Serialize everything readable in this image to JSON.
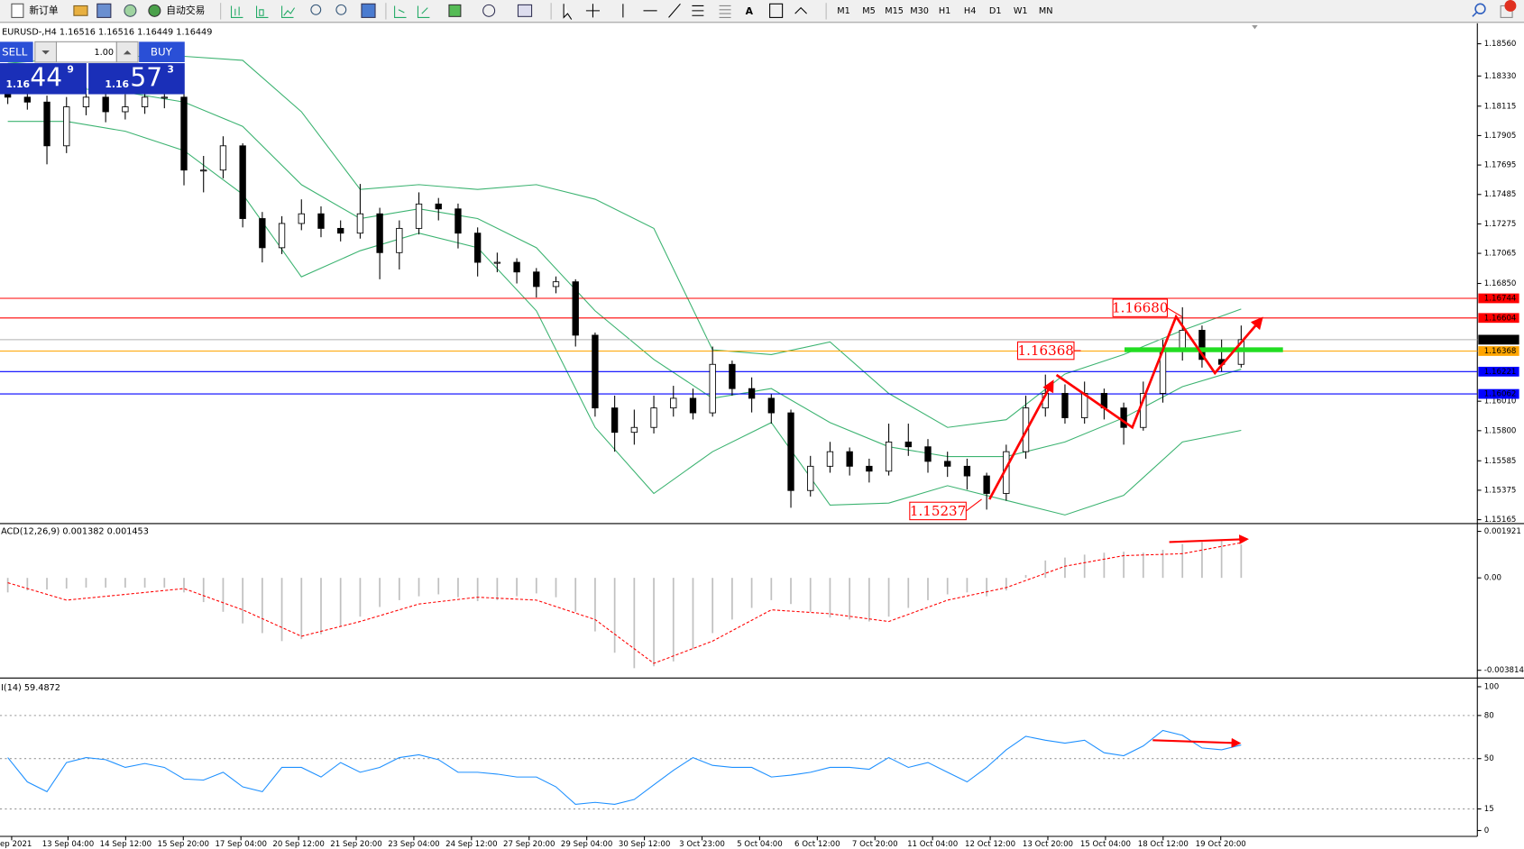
{
  "toolbar": {
    "new_order": "新订单",
    "auto_trading": "自动交易",
    "timeframes": [
      "M1",
      "M5",
      "M15",
      "M30",
      "H1",
      "H4",
      "D1",
      "W1",
      "MN"
    ]
  },
  "trade_panel": {
    "sell": "SELL",
    "buy": "BUY",
    "lot": "1.00",
    "sell_price": {
      "big": "1.16",
      "pips": "44",
      "point": "9"
    },
    "buy_price": {
      "big": "1.16",
      "pips": "57",
      "point": "3"
    }
  },
  "chart_data": [
    {
      "type": "candlestick",
      "title": "EURUSD-,H4  1.16516 1.16516 1.16449 1.16449",
      "open": [
        1.182,
        1.18179,
        1.18144,
        1.17832,
        1.1811,
        1.18179,
        1.18075,
        1.1811,
        1.18179,
        1.18179,
        1.17659,
        1.17659,
        1.17832,
        1.17313,
        1.17105,
        1.17278,
        1.17347,
        1.17243,
        1.17209,
        1.17347,
        1.1707,
        1.17243,
        1.17417,
        1.17382,
        1.17209,
        1.17001,
        1.17001,
        1.16932,
        1.16828,
        1.16862,
        1.16481,
        1.15962,
        1.15788,
        1.15823,
        1.15962,
        1.16031,
        1.15927,
        1.16273,
        1.161,
        1.16031,
        1.15927,
        1.15373,
        1.15546,
        1.1565,
        1.15546,
        1.15511,
        1.15719,
        1.15685,
        1.15581,
        1.15546,
        1.15477,
        1.15352,
        1.1565,
        1.15962,
        1.16066,
        1.15892,
        1.16066,
        1.15962,
        1.15823,
        1.16066,
        1.16377,
        1.16516,
        1.16308,
        1.16273
      ],
      "high": [
        1.1825,
        1.1823,
        1.1819,
        1.1818,
        1.1825,
        1.1823,
        1.182,
        1.1826,
        1.1824,
        1.182,
        1.1776,
        1.179,
        1.1785,
        1.1736,
        1.1733,
        1.1745,
        1.174,
        1.173,
        1.1756,
        1.1739,
        1.173,
        1.175,
        1.1746,
        1.1742,
        1.1725,
        1.1707,
        1.1703,
        1.1696,
        1.169,
        1.1688,
        1.165,
        1.1605,
        1.1595,
        1.1605,
        1.1612,
        1.161,
        1.164,
        1.163,
        1.1618,
        1.1606,
        1.1595,
        1.1562,
        1.1572,
        1.1568,
        1.156,
        1.1585,
        1.1585,
        1.1574,
        1.1565,
        1.156,
        1.155,
        1.157,
        1.1605,
        1.162,
        1.1613,
        1.1615,
        1.161,
        1.16,
        1.1615,
        1.1645,
        1.1668,
        1.1655,
        1.1645,
        1.1655
      ],
      "low": [
        1.1813,
        1.1809,
        1.177,
        1.1778,
        1.1805,
        1.18,
        1.1802,
        1.1806,
        1.181,
        1.1755,
        1.175,
        1.176,
        1.1725,
        1.17,
        1.1706,
        1.1723,
        1.1718,
        1.1715,
        1.1717,
        1.1688,
        1.1695,
        1.172,
        1.173,
        1.171,
        1.169,
        1.1693,
        1.1685,
        1.1675,
        1.1678,
        1.164,
        1.159,
        1.1565,
        1.157,
        1.1578,
        1.159,
        1.1588,
        1.159,
        1.1605,
        1.1593,
        1.1585,
        1.1525,
        1.1533,
        1.155,
        1.1548,
        1.1543,
        1.1548,
        1.1562,
        1.155,
        1.1547,
        1.1538,
        1.15237,
        1.153,
        1.156,
        1.159,
        1.1585,
        1.1585,
        1.1588,
        1.157,
        1.158,
        1.16,
        1.163,
        1.1625,
        1.16221,
        1.1625
      ],
      "close": [
        1.18179,
        1.18144,
        1.17832,
        1.1811,
        1.18179,
        1.18075,
        1.1811,
        1.18179,
        1.18179,
        1.17659,
        1.17659,
        1.17832,
        1.17313,
        1.17105,
        1.17278,
        1.17347,
        1.17243,
        1.17209,
        1.17347,
        1.1707,
        1.17243,
        1.17417,
        1.17382,
        1.17209,
        1.17001,
        1.17001,
        1.16932,
        1.16828,
        1.16862,
        1.16481,
        1.15962,
        1.15788,
        1.15823,
        1.15962,
        1.16031,
        1.15927,
        1.16273,
        1.161,
        1.16031,
        1.15927,
        1.15373,
        1.15546,
        1.1565,
        1.15546,
        1.15511,
        1.15719,
        1.15685,
        1.15581,
        1.15546,
        1.15477,
        1.15352,
        1.1565,
        1.15962,
        1.16066,
        1.15892,
        1.16066,
        1.15962,
        1.15823,
        1.16066,
        1.16377,
        1.16516,
        1.16308,
        1.16273,
        1.16449
      ],
      "ylim": [
        1.15144,
        1.18699
      ],
      "yticks": [
        {
          "value": 1.1856,
          "label": "1.18560"
        },
        {
          "value": 1.1833,
          "label": "1.18330"
        },
        1.18115,
        1.17905,
        1.17695,
        1.17485,
        1.17275,
        1.17065,
        {
          "value": 1.1685,
          "label": "1.16850"
        },
        {
          "value": 1.1601,
          "label": "1.16010"
        },
        {
          "value": 1.158,
          "label": "1.15800"
        },
        1.15585,
        1.15375,
        1.15165
      ],
      "x_labels": [
        "ep 2021",
        "13 Sep 04:00",
        "14 Sep 12:00",
        "15 Sep 20:00",
        "17 Sep 04:00",
        "20 Sep 12:00",
        "21 Sep 20:00",
        "23 Sep 04:00",
        "24 Sep 12:00",
        "27 Sep 20:00",
        "29 Sep 04:00",
        "30 Sep 12:00",
        "3 Oct 23:00",
        "5 Oct 04:00",
        "6 Oct 12:00",
        "7 Oct 20:00",
        "11 Oct 04:00",
        "12 Oct 12:00",
        "13 Oct 20:00",
        "15 Oct 04:00",
        "18 Oct 12:00",
        "19 Oct 20:00"
      ],
      "bands": [
        {
          "color": "#3cb371",
          "x": [
            0,
            3,
            6,
            9,
            12,
            15,
            18,
            21,
            24,
            27,
            30,
            33,
            36,
            39,
            42,
            45,
            48,
            51,
            54,
            57,
            60,
            63
          ],
          "values": [
            1.18421,
            1.18456,
            1.1847,
            1.1847,
            1.18442,
            1.18075,
            1.17521,
            1.17555,
            1.17521,
            1.17555,
            1.17451,
            1.17243,
            1.16377,
            1.16343,
            1.16433,
            1.16066,
            1.15823,
            1.15878,
            1.16204,
            1.16343,
            1.16516,
            1.16668
          ]
        },
        {
          "color": "#3cb371",
          "x": [
            0,
            3,
            6,
            9,
            12,
            15,
            18,
            21,
            24,
            27,
            30,
            33,
            36,
            39,
            42,
            45,
            48,
            51,
            54,
            57,
            60,
            63
          ],
          "values": [
            1.18214,
            1.18248,
            1.18214,
            1.18144,
            1.17971,
            1.17555,
            1.17313,
            1.17382,
            1.17313,
            1.17105,
            1.16655,
            1.16308,
            1.16031,
            1.161,
            1.15858,
            1.15685,
            1.15615,
            1.15615,
            1.15719,
            1.15892,
            1.16114,
            1.16239
          ]
        },
        {
          "color": "#3cb371",
          "x": [
            0,
            3,
            6,
            9,
            12,
            15,
            18,
            21,
            24,
            27,
            30,
            33,
            36,
            39,
            42,
            45,
            48,
            51,
            54,
            57,
            60,
            63
          ],
          "values": [
            1.18006,
            1.18006,
            1.17936,
            1.17798,
            1.17486,
            1.16897,
            1.17084,
            1.17209,
            1.17105,
            1.16655,
            1.15823,
            1.15352,
            1.1565,
            1.15858,
            1.15269,
            1.15283,
            1.15407,
            1.15303,
            1.15199,
            1.15338,
            1.15719,
            1.15802
          ]
        }
      ],
      "levels": [
        {
          "value": 1.16744,
          "color": "#ff0000"
        },
        {
          "value": 1.16604,
          "color": "#ff0000"
        },
        {
          "value": 1.16449,
          "color": "#b0b0b0",
          "label_color": "#000000"
        },
        {
          "value": 1.16368,
          "color": "#ffa500"
        },
        {
          "value": 1.16221,
          "color": "#0000ff"
        },
        {
          "value": 1.16062,
          "color": "#0000ff"
        }
      ],
      "annotations": [
        {
          "text": "1.16680"
        },
        {
          "text": "1.16368"
        },
        {
          "text": "1.15237"
        }
      ]
    },
    {
      "type": "macd",
      "title": "ACD(12,26,9) 0.001382 0.001453",
      "ylim": [
        -0.004095,
        0.002202
      ],
      "yticks": [
        0.001921,
        {
          "value": 0,
          "label": "0.00"
        },
        -0.003814
      ],
      "series": [
        {
          "color": "#c0c0c0",
          "values": [
            -0.0006,
            -0.00052,
            -0.00048,
            -0.00044,
            -0.0004,
            -0.0004,
            -0.0004,
            -0.0004,
            -0.0004,
            -0.0006,
            -0.001,
            -0.0014,
            -0.00188,
            -0.00228,
            -0.00261,
            -0.00253,
            -0.00233,
            -0.00201,
            -0.0016,
            -0.0012,
            -0.00092,
            -0.00076,
            -0.00068,
            -0.0008,
            -0.00096,
            -0.00092,
            -0.00076,
            -0.00064,
            -0.0008,
            -0.0014,
            -0.00221,
            -0.00309,
            -0.00373,
            -0.00365,
            -0.00345,
            -0.00293,
            -0.00228,
            -0.00172,
            -0.00124,
            -0.00092,
            -0.00108,
            -0.0014,
            -0.00164,
            -0.00172,
            -0.0018,
            -0.0016,
            -0.00124,
            -0.00092,
            -0.00068,
            -0.0006,
            -0.00076,
            -0.00052,
            0.00012,
            0.00072,
            0.00084,
            0.00096,
            0.00104,
            0.00108,
            0.00104,
            0.00116,
            0.0014,
            0.00148,
            0.00152,
            0.001382
          ]
        },
        {
          "color": "#ff0000",
          "x": [
            0,
            3,
            6,
            9,
            12,
            15,
            18,
            21,
            24,
            27,
            30,
            33,
            36,
            39,
            42,
            45,
            48,
            51,
            54,
            57,
            60,
            63
          ],
          "values": [
            -0.0002,
            -0.00092,
            -0.00068,
            -0.00044,
            -0.00132,
            -0.00241,
            -0.0018,
            -0.00108,
            -0.0008,
            -0.00092,
            -0.00172,
            -0.00353,
            -0.00261,
            -0.00132,
            -0.00148,
            -0.0018,
            -0.00092,
            -0.0004,
            0.00048,
            0.00092,
            0.001,
            0.001453
          ]
        }
      ]
    },
    {
      "type": "line",
      "title": "I(14) 59.4872",
      "color": "#1e90ff",
      "ylim": [
        -3.4,
        104.7
      ],
      "yticks": [
        100,
        80,
        50,
        15,
        0
      ],
      "levels": [
        80,
        50,
        15
      ],
      "values": [
        50.7,
        33.8,
        27,
        47.3,
        50.7,
        49.3,
        43.9,
        46.6,
        43.9,
        35.8,
        35.1,
        40.5,
        30.4,
        27,
        43.9,
        43.9,
        37.2,
        47.3,
        40.5,
        43.9,
        50.7,
        52.7,
        49.3,
        40.5,
        40.5,
        39.2,
        37.2,
        37.2,
        30.4,
        18.2,
        19.6,
        18.2,
        21.6,
        31.8,
        41.9,
        50.7,
        45.3,
        43.9,
        43.9,
        37.2,
        38.5,
        40.5,
        43.9,
        43.9,
        42.6,
        50.7,
        43.9,
        47.3,
        40.5,
        33.8,
        43.9,
        56.1,
        65.5,
        62.8,
        60.8,
        62.8,
        54.1,
        52,
        58.8,
        69.6,
        66.2,
        57.4,
        56.1,
        59.4872
      ]
    }
  ]
}
